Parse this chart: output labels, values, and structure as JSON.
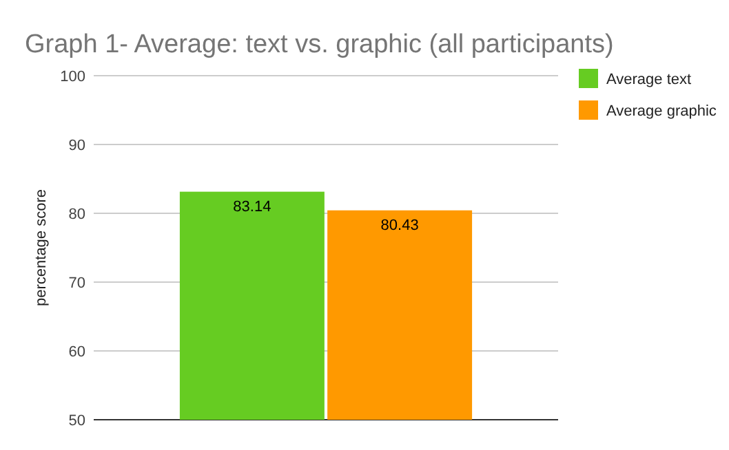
{
  "chart_data": {
    "type": "bar",
    "title": "Graph 1- Average: text vs. graphic (all participants)",
    "ylabel": "percentage score",
    "categories": [
      null
    ],
    "series": [
      {
        "name": "Average text",
        "color": "#66cc22",
        "values": [
          83.14
        ]
      },
      {
        "name": "Average graphic",
        "color": "#ff9900",
        "values": [
          80.43
        ]
      }
    ],
    "ylim": [
      50,
      100
    ],
    "yticks": [
      50,
      60,
      70,
      80,
      90,
      100
    ],
    "grid": "y",
    "legend": "top right",
    "data_labels": true
  }
}
